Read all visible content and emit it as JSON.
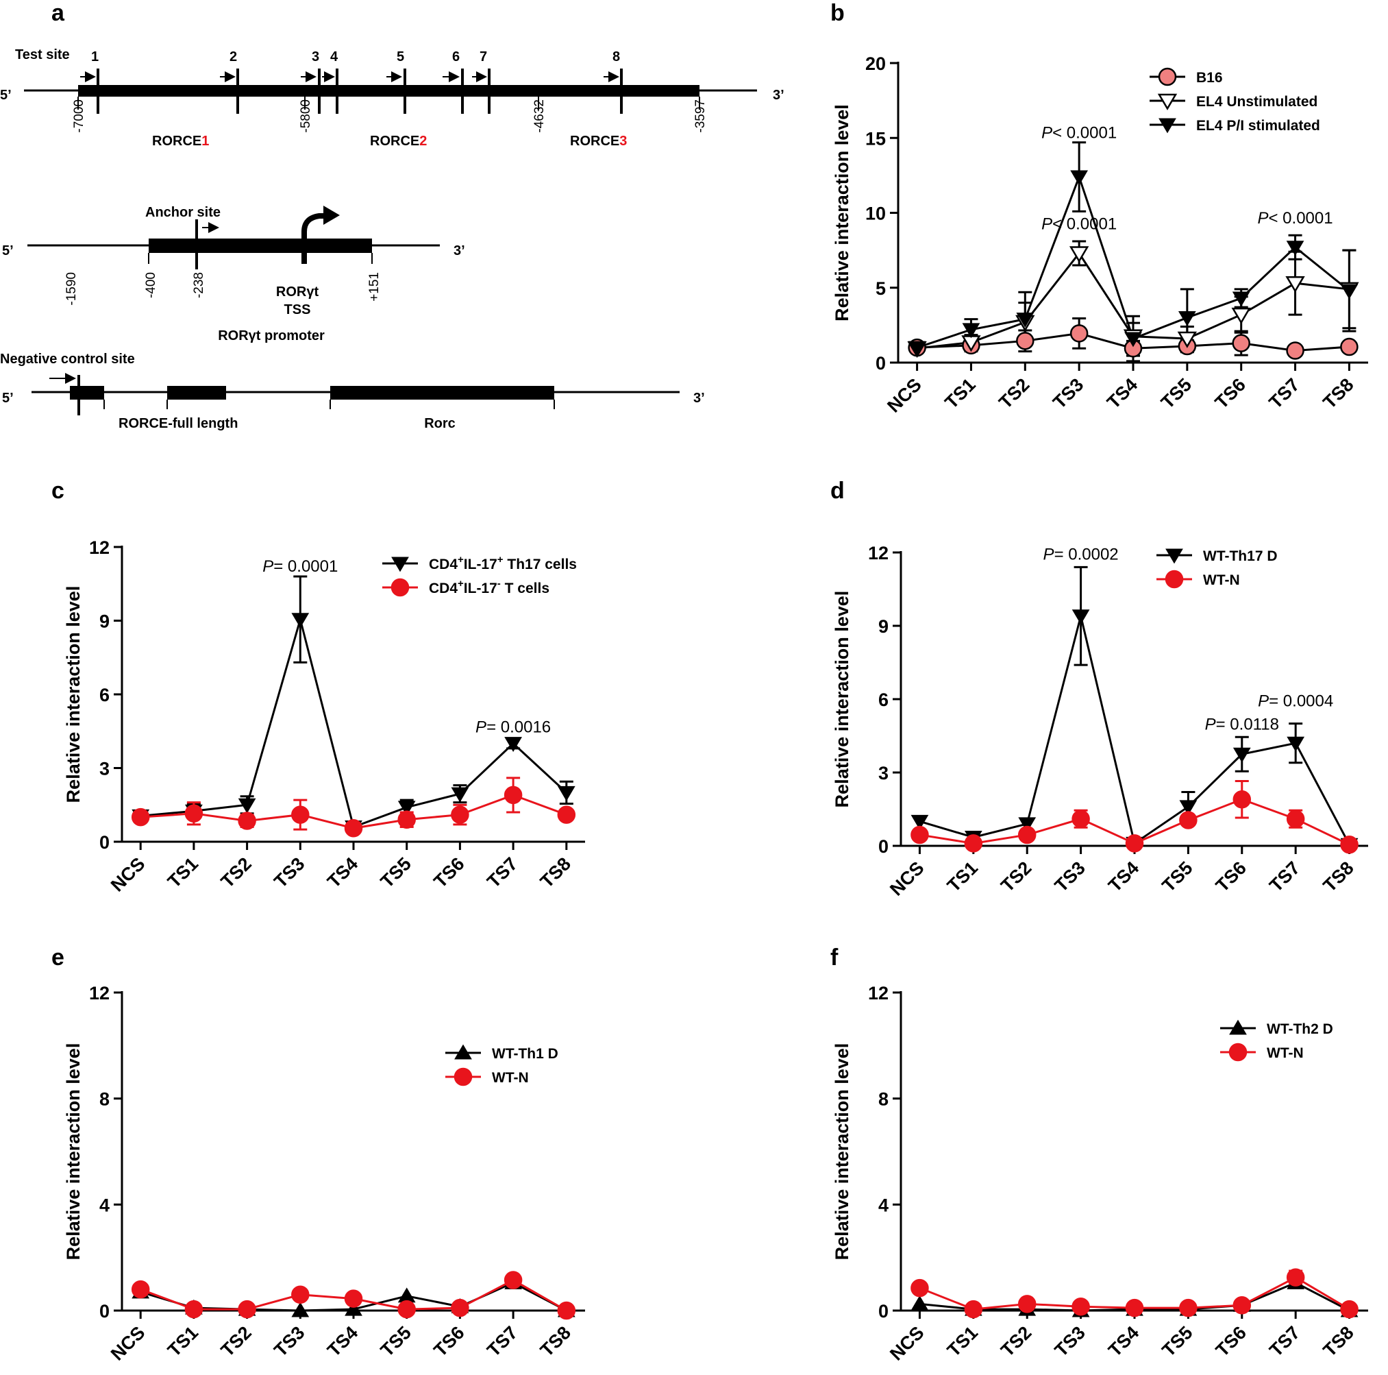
{
  "panel_labels": [
    "a",
    "b",
    "c",
    "d",
    "e",
    "f"
  ],
  "diagram": {
    "test_site_label": "Test site",
    "site_numbers": [
      "1",
      "2",
      "3",
      "4",
      "5",
      "6",
      "7",
      "8"
    ],
    "five_prime": "5’",
    "three_prime": "3’",
    "rorce_prefix": "RORCE",
    "rorce_digits": [
      "1",
      "2",
      "3"
    ],
    "enhancer_coords": [
      "-7000",
      "-5800",
      "-4632",
      "-3597"
    ],
    "anchor_site_label": "Anchor site",
    "promoter_coords": [
      "-1590",
      "-400",
      "-238",
      "+151"
    ],
    "tss_label_1": "RORγt",
    "tss_label_2": "TSS",
    "promoter_label": "RORγt promoter",
    "negative_site_label": "Negative control site",
    "rorce_full_label": "RORCE-full length",
    "rorc_label": "Rorc",
    "accent_red": "#e8141c"
  },
  "p_prefix": "P",
  "chart_data": [
    {
      "panel": "b",
      "type": "line",
      "categories": [
        "NCS",
        "TS1",
        "TS2",
        "TS3",
        "TS4",
        "TS5",
        "TS6",
        "TS7",
        "TS8"
      ],
      "ylabel": "Relative interaction level",
      "ylim": [
        0,
        20
      ],
      "yticks": [
        "0",
        "5",
        "10",
        "15",
        "20"
      ],
      "series": [
        {
          "name": "B16",
          "marker": "circle-salmon",
          "color": "#f08080",
          "values": [
            1.0,
            1.15,
            1.45,
            1.95,
            0.95,
            1.1,
            1.3,
            0.8,
            1.05
          ],
          "errors": [
            0.3,
            0.4,
            0.7,
            1.0,
            0.5,
            0.4,
            0.8,
            0.2,
            0.3
          ]
        },
        {
          "name": "EL4 Unstimulated",
          "marker": "triangle-down-open",
          "color": "#000000",
          "values": [
            0.95,
            1.35,
            2.7,
            7.3,
            1.75,
            1.6,
            3.2,
            5.3,
            4.9
          ],
          "errors": [
            0.2,
            0.5,
            1.3,
            0.8,
            0.9,
            0.8,
            1.2,
            2.1,
            2.6
          ]
        },
        {
          "name": "EL4 P/I stimulated",
          "marker": "triangle-down-filled",
          "color": "#000000",
          "values": [
            1.0,
            2.2,
            2.9,
            12.4,
            1.6,
            3.0,
            4.3,
            7.7,
            4.8
          ],
          "errors": [
            0.2,
            0.7,
            1.8,
            2.3,
            1.5,
            1.9,
            0.6,
            0.8,
            2.7
          ]
        }
      ],
      "annotations": [
        {
          "category": "TS3",
          "y": 15.0,
          "text": "< 0.0001"
        },
        {
          "category": "TS3",
          "y": 8.9,
          "text": "< 0.0001"
        },
        {
          "category": "TS7",
          "y": 9.3,
          "text": "< 0.0001"
        }
      ],
      "legend_location": "top-right"
    },
    {
      "panel": "c",
      "type": "line",
      "categories": [
        "NCS",
        "TS1",
        "TS2",
        "TS3",
        "TS4",
        "TS5",
        "TS6",
        "TS7",
        "TS8"
      ],
      "ylabel": "Relative interaction level",
      "ylim": [
        0,
        12
      ],
      "yticks": [
        "0",
        "3",
        "6",
        "9",
        "12"
      ],
      "series": [
        {
          "name": "CD4+IL-17+ Th17 cells",
          "marker": "triangle-down-filled",
          "color": "#000000",
          "values": [
            1.05,
            1.25,
            1.5,
            9.05,
            0.6,
            1.4,
            1.95,
            4.0,
            2.0
          ],
          "errors": [
            0.1,
            0.3,
            0.35,
            1.75,
            0.1,
            0.3,
            0.35,
            0.2,
            0.45
          ]
        },
        {
          "name": "CD4+IL-17- T cells",
          "marker": "circle-red",
          "color": "#e8141c",
          "values": [
            1.0,
            1.15,
            0.85,
            1.1,
            0.55,
            0.9,
            1.1,
            1.9,
            1.1
          ],
          "errors": [
            0.1,
            0.45,
            0.25,
            0.6,
            0.2,
            0.3,
            0.4,
            0.7,
            0.1
          ]
        }
      ],
      "annotations": [
        {
          "category": "TS3",
          "y": 11.0,
          "text": "= 0.0001"
        },
        {
          "category": "TS7",
          "y": 4.45,
          "text": "= 0.0016"
        }
      ],
      "legend_location": "top-right"
    },
    {
      "panel": "d",
      "type": "line",
      "categories": [
        "NCS",
        "TS1",
        "TS2",
        "TS3",
        "TS4",
        "TS5",
        "TS6",
        "TS7",
        "TS8"
      ],
      "ylabel": "Relative interaction level",
      "ylim": [
        0,
        12
      ],
      "yticks": [
        "0",
        "3",
        "6",
        "9",
        "12"
      ],
      "series": [
        {
          "name": "WT-Th17 D",
          "marker": "triangle-down-filled",
          "color": "#000000",
          "values": [
            1.0,
            0.35,
            0.9,
            9.4,
            0.1,
            1.6,
            3.75,
            4.2,
            0.05
          ],
          "errors": [
            0.0,
            0.0,
            0.0,
            2.0,
            0.0,
            0.6,
            0.7,
            0.8,
            0.0
          ]
        },
        {
          "name": "WT-N",
          "marker": "circle-red",
          "color": "#e8141c",
          "values": [
            0.45,
            0.1,
            0.45,
            1.1,
            0.1,
            1.05,
            1.9,
            1.1,
            0.05
          ],
          "errors": [
            0.0,
            0.0,
            0.0,
            0.35,
            0.0,
            0.0,
            0.75,
            0.35,
            0.0
          ]
        }
      ],
      "annotations": [
        {
          "category": "TS3",
          "y": 11.7,
          "text": "= 0.0002"
        },
        {
          "category": "TS6",
          "y": 4.75,
          "text": "= 0.0118"
        },
        {
          "category": "TS7",
          "y": 5.7,
          "text": "= 0.0004"
        }
      ],
      "legend_location": "top-right"
    },
    {
      "panel": "e",
      "type": "line",
      "categories": [
        "NCS",
        "TS1",
        "TS2",
        "TS3",
        "TS4",
        "TS5",
        "TS6",
        "TS7",
        "TS8"
      ],
      "ylabel": "Relative interaction level",
      "ylim": [
        0,
        12
      ],
      "yticks": [
        "0",
        "4",
        "8",
        "12"
      ],
      "series": [
        {
          "name": "WT-Th1 D",
          "marker": "triangle-up-filled",
          "color": "#000000",
          "values": [
            0.7,
            0.1,
            0.05,
            0.0,
            0.05,
            0.55,
            0.15,
            1.05,
            0.0
          ],
          "errors": [
            0.1,
            0.0,
            0.0,
            0.0,
            0.0,
            0.0,
            0.0,
            0.1,
            0.0
          ]
        },
        {
          "name": "WT-N",
          "marker": "circle-red",
          "color": "#e8141c",
          "values": [
            0.8,
            0.05,
            0.05,
            0.6,
            0.45,
            0.05,
            0.1,
            1.15,
            0.0
          ],
          "errors": [
            0.15,
            0.0,
            0.0,
            0.0,
            0.0,
            0.0,
            0.0,
            0.1,
            0.0
          ]
        }
      ],
      "annotations": [],
      "legend_location": "top-right"
    },
    {
      "panel": "f",
      "type": "line",
      "categories": [
        "NCS",
        "TS1",
        "TS2",
        "TS3",
        "TS4",
        "TS5",
        "TS6",
        "TS7",
        "TS8"
      ],
      "ylabel": "Relative interaction level",
      "ylim": [
        0,
        12
      ],
      "yticks": [
        "0",
        "4",
        "8",
        "12"
      ],
      "series": [
        {
          "name": "WT-Th2 D",
          "marker": "triangle-up-filled",
          "color": "#000000",
          "values": [
            0.25,
            0.05,
            0.05,
            0.0,
            0.05,
            0.05,
            0.2,
            1.05,
            0.0
          ],
          "errors": [
            0.0,
            0.0,
            0.0,
            0.0,
            0.0,
            0.0,
            0.0,
            0.15,
            0.0
          ]
        },
        {
          "name": "WT-N",
          "marker": "circle-red",
          "color": "#e8141c",
          "values": [
            0.85,
            0.05,
            0.25,
            0.15,
            0.1,
            0.1,
            0.2,
            1.25,
            0.05
          ],
          "errors": [
            0.0,
            0.0,
            0.0,
            0.0,
            0.0,
            0.0,
            0.0,
            0.25,
            0.0
          ]
        }
      ],
      "annotations": [],
      "legend_location": "top-right"
    }
  ]
}
